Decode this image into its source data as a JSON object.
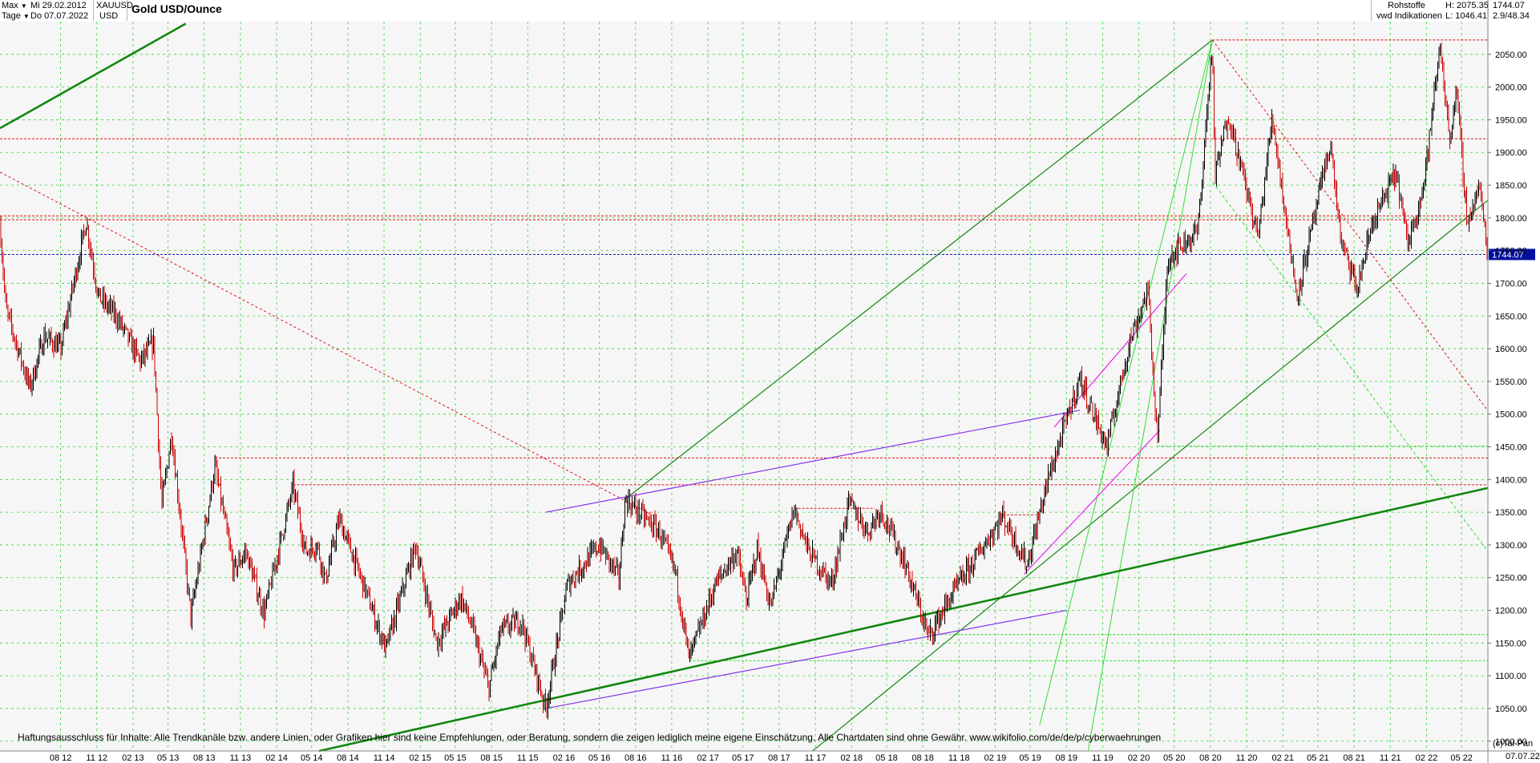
{
  "header": {
    "range_label": "Max",
    "period_label": "Tage",
    "date_from": "Mi 29.02.2012",
    "date_to": "Do 07.07.2022",
    "symbol": "XAUUSD",
    "currency": "USD",
    "title": "Gold USD/Ounce",
    "category": "Rohstoffe",
    "source": "vwd Indikationen",
    "high": "H: 2075.35",
    "low": "L: 1046.41",
    "last": "1744.07",
    "change": "2.9/48.34"
  },
  "footer": {
    "disclaimer": "Haftungsausschluss für Inhalte: Alle Trendkanäle bzw. andere Linien, oder Grafiken hier sind keine Empfehlungen, oder Beratung, sondern die zeigen lediglich meine eigene Einschätzung. Alle Chartdaten sind ohne Gewähr.  www.wikifolio.com/de/de/p/cyberwaehrungen",
    "copyright": "(c)Tai-Pan",
    "last_date": "07.07.22"
  },
  "colors": {
    "grid": "#39d13c",
    "candle_up": "#000000",
    "candle_down": "#cc0000",
    "trend_dark_green": "#118811",
    "trend_light_green": "#33dd33",
    "support_red": "#dd1111",
    "channel_violet": "#8833ee",
    "channel_magenta": "#ee22ee",
    "last_price_line": "#1a1aaa",
    "last_price_badge": "#0010a0"
  },
  "chart_data": {
    "type": "candlestick",
    "title": "Gold USD/Ounce",
    "ylim": [
      985,
      2100
    ],
    "y_ticks": [
      1000,
      1050,
      1100,
      1150,
      1200,
      1250,
      1300,
      1350,
      1400,
      1450,
      1500,
      1550,
      1600,
      1650,
      1700,
      1750,
      1800,
      1850,
      1900,
      1950,
      2000,
      2050
    ],
    "x_tick_labels": [
      "08 12",
      "11 12",
      "02 13",
      "05 13",
      "08 13",
      "11 13",
      "02 14",
      "05 14",
      "08 14",
      "11 14",
      "02 15",
      "05 15",
      "08 15",
      "11 15",
      "02 16",
      "05 16",
      "08 16",
      "11 16",
      "02 17",
      "05 17",
      "08 17",
      "11 17",
      "02 18",
      "05 18",
      "08 18",
      "11 18",
      "02 19",
      "05 19",
      "08 19",
      "11 19",
      "02 20",
      "05 20",
      "08 20",
      "11 20",
      "02 21",
      "05 21",
      "08 21",
      "11 21",
      "02 22",
      "05 22"
    ],
    "x_range": [
      "2012-02-29",
      "2022-07-07"
    ],
    "price_path": [
      [
        "2012-02-29",
        1790
      ],
      [
        "2012-03-15",
        1660
      ],
      [
        "2012-05-15",
        1540
      ],
      [
        "2012-06-20",
        1620
      ],
      [
        "2012-08-01",
        1600
      ],
      [
        "2012-10-05",
        1795
      ],
      [
        "2012-11-05",
        1680
      ],
      [
        "2012-12-20",
        1650
      ],
      [
        "2013-02-20",
        1580
      ],
      [
        "2013-03-25",
        1610
      ],
      [
        "2013-04-15",
        1360
      ],
      [
        "2013-05-10",
        1470
      ],
      [
        "2013-06-28",
        1190
      ],
      [
        "2013-08-28",
        1420
      ],
      [
        "2013-10-15",
        1260
      ],
      [
        "2013-11-15",
        1290
      ],
      [
        "2013-12-31",
        1195
      ],
      [
        "2014-03-15",
        1390
      ],
      [
        "2014-04-15",
        1290
      ],
      [
        "2014-05-15",
        1300
      ],
      [
        "2014-06-05",
        1245
      ],
      [
        "2014-07-10",
        1340
      ],
      [
        "2014-09-15",
        1230
      ],
      [
        "2014-11-05",
        1140
      ],
      [
        "2015-01-20",
        1300
      ],
      [
        "2015-03-15",
        1150
      ],
      [
        "2015-05-15",
        1220
      ],
      [
        "2015-06-15",
        1170
      ],
      [
        "2015-07-25",
        1080
      ],
      [
        "2015-08-25",
        1170
      ],
      [
        "2015-10-15",
        1185
      ],
      [
        "2015-12-17",
        1050
      ],
      [
        "2016-02-10",
        1240
      ],
      [
        "2016-05-01",
        1300
      ],
      [
        "2016-06-20",
        1250
      ],
      [
        "2016-07-06",
        1370
      ],
      [
        "2016-09-30",
        1320
      ],
      [
        "2016-11-10",
        1260
      ],
      [
        "2016-12-15",
        1125
      ],
      [
        "2017-02-20",
        1240
      ],
      [
        "2017-04-15",
        1290
      ],
      [
        "2017-05-10",
        1215
      ],
      [
        "2017-06-06",
        1295
      ],
      [
        "2017-07-10",
        1205
      ],
      [
        "2017-09-08",
        1355
      ],
      [
        "2017-10-15",
        1290
      ],
      [
        "2017-12-12",
        1240
      ],
      [
        "2018-01-25",
        1365
      ],
      [
        "2018-03-15",
        1320
      ],
      [
        "2018-04-15",
        1355
      ],
      [
        "2018-06-15",
        1275
      ],
      [
        "2018-08-16",
        1160
      ],
      [
        "2018-10-15",
        1225
      ],
      [
        "2019-01-31",
        1325
      ],
      [
        "2019-02-20",
        1345
      ],
      [
        "2019-04-23",
        1270
      ],
      [
        "2019-06-15",
        1400
      ],
      [
        "2019-09-04",
        1555
      ],
      [
        "2019-10-15",
        1490
      ],
      [
        "2019-11-12",
        1450
      ],
      [
        "2020-01-08",
        1610
      ],
      [
        "2020-02-24",
        1690
      ],
      [
        "2020-03-19",
        1460
      ],
      [
        "2020-04-15",
        1740
      ],
      [
        "2020-06-30",
        1780
      ],
      [
        "2020-08-06",
        2070
      ],
      [
        "2020-08-12",
        1860
      ],
      [
        "2020-09-15",
        1960
      ],
      [
        "2020-11-30",
        1770
      ],
      [
        "2021-01-05",
        1955
      ],
      [
        "2021-03-08",
        1680
      ],
      [
        "2021-04-15",
        1780
      ],
      [
        "2021-06-01",
        1915
      ],
      [
        "2021-06-30",
        1760
      ],
      [
        "2021-08-09",
        1690
      ],
      [
        "2021-09-15",
        1790
      ],
      [
        "2021-11-16",
        1870
      ],
      [
        "2021-12-15",
        1760
      ],
      [
        "2022-01-25",
        1850
      ],
      [
        "2022-03-08",
        2065
      ],
      [
        "2022-03-31",
        1920
      ],
      [
        "2022-04-18",
        1995
      ],
      [
        "2022-05-16",
        1790
      ],
      [
        "2022-06-15",
        1850
      ],
      [
        "2022-07-07",
        1744
      ]
    ],
    "horizontal_levels": [
      {
        "price": 2072,
        "from": "2020-08-06",
        "color": "red"
      },
      {
        "price": 1921,
        "color": "red"
      },
      {
        "price": 1803,
        "color": "red"
      },
      {
        "price": 1797,
        "color": "red"
      },
      {
        "price": 1744.07,
        "color": "blue",
        "label": "1744.07"
      },
      {
        "price": 1433,
        "from": "2013-08-28",
        "color": "red"
      },
      {
        "price": 1392,
        "from": "2014-03-15",
        "color": "red"
      },
      {
        "price": 1356,
        "from": "2017-09-08",
        "to": "2018-04-01",
        "color": "red"
      },
      {
        "price": 1346,
        "from": "2019-02-20",
        "to": "2019-05-15",
        "color": "red"
      },
      {
        "price": 1451,
        "from": "2020-03-19",
        "color": "green"
      },
      {
        "price": 1163,
        "from": "2018-08-16",
        "color": "green"
      },
      {
        "price": 1123,
        "from": "2016-12-15",
        "color": "green"
      }
    ],
    "trendlines": [
      {
        "color": "dark-green",
        "from": [
          "2012-02-29",
          1937
        ],
        "to": [
          "2013-06-15",
          2097
        ]
      },
      {
        "color": "dark-green",
        "from": [
          "2014-05-20",
          985
        ],
        "to": [
          "2022-07-07",
          1387
        ]
      },
      {
        "color": "dark-green",
        "from": [
          "2016-07-06",
          1370
        ],
        "to": [
          "2020-08-06",
          2072
        ]
      },
      {
        "color": "dark-green",
        "from": [
          "2017-10-25",
          985
        ],
        "to": [
          "2022-07-07",
          1827
        ]
      },
      {
        "color": "light-green",
        "from": [
          "2019-05-25",
          1025
        ],
        "to": [
          "2020-08-06",
          2072
        ]
      },
      {
        "color": "light-green",
        "from": [
          "2019-09-25",
          985
        ],
        "to": [
          "2020-08-06",
          2072
        ]
      },
      {
        "color": "light-green-dashed",
        "from": [
          "2020-08-06",
          1855
        ],
        "to": [
          "2022-07-07",
          1290
        ]
      },
      {
        "color": "red-dashed",
        "from": [
          "2012-02-29",
          1870
        ],
        "to": [
          "2016-09-15",
          1345
        ]
      },
      {
        "color": "red-dashed",
        "from": [
          "2020-08-06",
          2072
        ],
        "to": [
          "2022-07-07",
          1505
        ]
      },
      {
        "color": "violet",
        "from": [
          "2015-12-17",
          1350
        ],
        "to": [
          "2019-09-04",
          1506
        ]
      },
      {
        "color": "violet",
        "from": [
          "2015-12-17",
          1050
        ],
        "to": [
          "2019-08-01",
          1200
        ]
      },
      {
        "color": "magenta",
        "from": [
          "2019-07-01",
          1480
        ],
        "to": [
          "2020-06-01",
          1715
        ]
      },
      {
        "color": "magenta",
        "from": [
          "2019-04-15",
          1255
        ],
        "to": [
          "2020-03-25",
          1475
        ]
      }
    ]
  }
}
